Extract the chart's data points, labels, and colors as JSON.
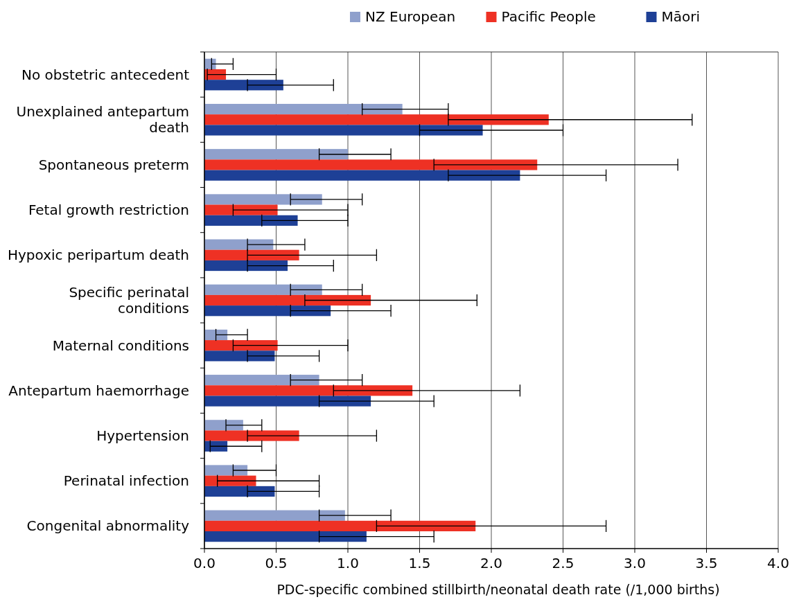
{
  "chart_data": {
    "type": "bar",
    "orientation": "horizontal",
    "xlabel": "PDC-specific combined stillbirth/neonatal death rate (/1,000 births)",
    "categories": [
      "No obstetric antecedent",
      "Unexplained antepartum death",
      "Spontaneous preterm",
      "Fetal growth restriction",
      "Hypoxic peripartum death",
      "Specific perinatal conditions",
      "Maternal conditions",
      "Antepartum haemorrhage",
      "Hypertension",
      "Perinatal infection",
      "Congenital abnormality"
    ],
    "series": [
      {
        "name": "NZ European",
        "color": "#8fa0cc",
        "values": [
          0.08,
          1.38,
          1.0,
          0.82,
          0.48,
          0.82,
          0.16,
          0.8,
          0.27,
          0.3,
          0.98
        ],
        "errors": [
          [
            0.05,
            0.2
          ],
          [
            1.1,
            1.7
          ],
          [
            0.8,
            1.3
          ],
          [
            0.6,
            1.1
          ],
          [
            0.3,
            0.7
          ],
          [
            0.6,
            1.1
          ],
          [
            0.08,
            0.3
          ],
          [
            0.6,
            1.1
          ],
          [
            0.15,
            0.4
          ],
          [
            0.2,
            0.5
          ],
          [
            0.8,
            1.3
          ]
        ]
      },
      {
        "name": "Pacific People",
        "color": "#ee3124",
        "values": [
          0.15,
          2.4,
          2.32,
          0.51,
          0.66,
          1.16,
          0.51,
          1.45,
          0.66,
          0.36,
          1.89
        ],
        "errors": [
          [
            0.02,
            0.5
          ],
          [
            1.7,
            3.4
          ],
          [
            1.6,
            3.3
          ],
          [
            0.2,
            1.0
          ],
          [
            0.3,
            1.2
          ],
          [
            0.7,
            1.9
          ],
          [
            0.2,
            1.0
          ],
          [
            0.9,
            2.2
          ],
          [
            0.3,
            1.2
          ],
          [
            0.09,
            0.8
          ],
          [
            1.2,
            2.8
          ]
        ]
      },
      {
        "name": "Māori",
        "color": "#1e4096",
        "values": [
          0.55,
          1.94,
          2.2,
          0.65,
          0.58,
          0.88,
          0.49,
          1.16,
          0.16,
          0.49,
          1.13
        ],
        "errors": [
          [
            0.3,
            0.9
          ],
          [
            1.5,
            2.5
          ],
          [
            1.7,
            2.8
          ],
          [
            0.4,
            1.0
          ],
          [
            0.3,
            0.9
          ],
          [
            0.6,
            1.3
          ],
          [
            0.3,
            0.8
          ],
          [
            0.8,
            1.6
          ],
          [
            0.04,
            0.4
          ],
          [
            0.3,
            0.8
          ],
          [
            0.8,
            1.6
          ]
        ]
      }
    ],
    "xlim": [
      0,
      4
    ],
    "xticks": [
      {
        "value": 0,
        "label": "0.0"
      },
      {
        "value": 0.5,
        "label": "0.5"
      },
      {
        "value": 1,
        "label": "1.0"
      },
      {
        "value": 1.5,
        "label": "1.5"
      },
      {
        "value": 2,
        "label": "2.0"
      },
      {
        "value": 2.5,
        "label": "2.5"
      },
      {
        "value": 3,
        "label": "3.0"
      },
      {
        "value": 3.5,
        "label": "3.5"
      },
      {
        "value": 4,
        "label": "4.0"
      }
    ],
    "grid": "x",
    "legend": "top"
  }
}
